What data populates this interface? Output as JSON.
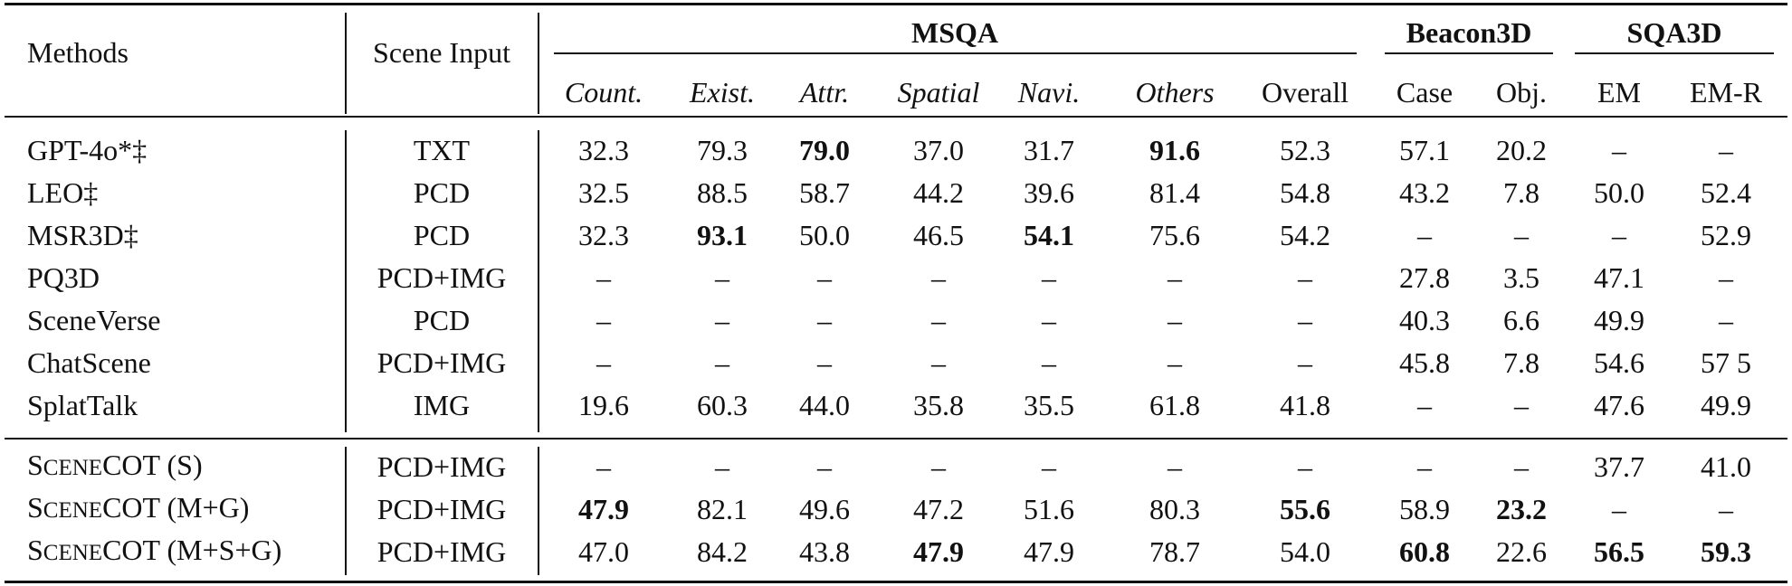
{
  "table": {
    "headers": {
      "methods": "Methods",
      "scene_input": "Scene Input",
      "groups": {
        "msqa": "MSQA",
        "beacon3d": "Beacon3D",
        "sqa3d": "SQA3D"
      },
      "columns": [
        "Count.",
        "Exist.",
        "Attr.",
        "Spatial",
        "Navi.",
        "Others",
        "Overall",
        "Case",
        "Obj.",
        "EM",
        "EM-R"
      ]
    },
    "rows": [
      {
        "method": "GPT-4o*‡",
        "input": "TXT",
        "values": [
          "32.3",
          "79.3",
          "79.0",
          "37.0",
          "31.7",
          "91.6",
          "52.3",
          "57.1",
          "20.2",
          "–",
          "–"
        ],
        "bold": [
          2,
          5
        ]
      },
      {
        "method": "LEO‡",
        "input": "PCD",
        "values": [
          "32.5",
          "88.5",
          "58.7",
          "44.2",
          "39.6",
          "81.4",
          "54.8",
          "43.2",
          "7.8",
          "50.0",
          "52.4"
        ],
        "bold": []
      },
      {
        "method": "MSR3D‡",
        "input": "PCD",
        "values": [
          "32.3",
          "93.1",
          "50.0",
          "46.5",
          "54.1",
          "75.6",
          "54.2",
          "–",
          "–",
          "–",
          "52.9"
        ],
        "bold": [
          1,
          4
        ]
      },
      {
        "method": "PQ3D",
        "input": "PCD+IMG",
        "values": [
          "–",
          "–",
          "–",
          "–",
          "–",
          "–",
          "–",
          "27.8",
          "3.5",
          "47.1",
          "–"
        ],
        "bold": []
      },
      {
        "method": "SceneVerse",
        "input": "PCD",
        "values": [
          "–",
          "–",
          "–",
          "–",
          "–",
          "–",
          "–",
          "40.3",
          "6.6",
          "49.9",
          "–"
        ],
        "bold": []
      },
      {
        "method": "ChatScene",
        "input": "PCD+IMG",
        "values": [
          "–",
          "–",
          "–",
          "–",
          "–",
          "–",
          "–",
          "45.8",
          "7.8",
          "54.6",
          "57 5"
        ],
        "bold": []
      },
      {
        "method": "SplatTalk",
        "input": "IMG",
        "values": [
          "19.6",
          "60.3",
          "44.0",
          "35.8",
          "35.5",
          "61.8",
          "41.8",
          "–",
          "–",
          "47.6",
          "49.9"
        ],
        "bold": []
      },
      {
        "method_sc": [
          "S",
          "CENE",
          "COT"
        ],
        "method_suffix": " (S)",
        "input": "PCD+IMG",
        "values": [
          "–",
          "–",
          "–",
          "–",
          "–",
          "–",
          "–",
          "–",
          "–",
          "37.7",
          "41.0"
        ],
        "bold": []
      },
      {
        "method_sc": [
          "S",
          "CENE",
          "COT"
        ],
        "method_suffix": " (M+G)",
        "input": "PCD+IMG",
        "values": [
          "47.9",
          "82.1",
          "49.6",
          "47.2",
          "51.6",
          "80.3",
          "55.6",
          "58.9",
          "23.2",
          "–",
          "–"
        ],
        "bold": [
          0,
          6,
          8
        ]
      },
      {
        "method_sc": [
          "S",
          "CENE",
          "COT"
        ],
        "method_suffix": " (M+S+G)",
        "input": "PCD+IMG",
        "values": [
          "47.0",
          "84.2",
          "43.8",
          "47.9",
          "47.9",
          "78.7",
          "54.0",
          "60.8",
          "22.6",
          "56.5",
          "59.3"
        ],
        "bold": [
          3,
          7,
          9,
          10
        ]
      }
    ]
  }
}
